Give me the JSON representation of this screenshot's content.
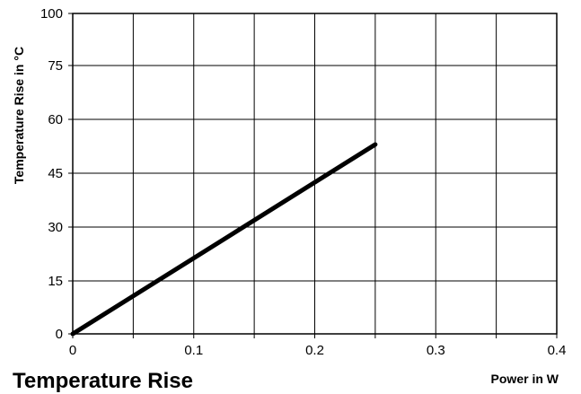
{
  "chart_data": {
    "type": "line",
    "title": "Temperature Rise",
    "xlabel": "Power in W",
    "ylabel": "Temperature Rise in °C",
    "xlim": [
      0,
      0.4
    ],
    "ylim": [
      0,
      100
    ],
    "x_ticks": [
      0,
      0.05,
      0.1,
      0.15,
      0.2,
      0.25,
      0.3,
      0.35,
      0.4
    ],
    "x_tick_labels": [
      "0",
      "",
      "0.1",
      "",
      "0.2",
      "",
      "0.3",
      "",
      "0.4"
    ],
    "y_ticks": [
      0,
      15,
      30,
      45,
      60,
      75,
      100
    ],
    "y_tick_labels": [
      "0",
      "15",
      "30",
      "45",
      "60",
      "75",
      "100"
    ],
    "grid": true,
    "series": [
      {
        "x": [
          0,
          0.25
        ],
        "y": [
          0,
          53
        ]
      }
    ],
    "line_color": "#000000"
  }
}
